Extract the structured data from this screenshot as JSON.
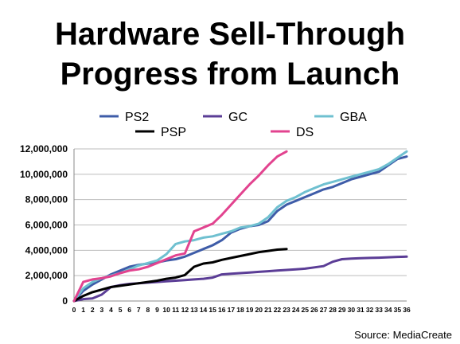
{
  "title_line1": "Hardware Sell-Through",
  "title_line2": "Progress from Launch",
  "source": "Source: MediaCreate",
  "chart_data": {
    "type": "line",
    "title": "Hardware Sell-Through Progress from Launch",
    "xlabel": "",
    "ylabel": "",
    "ylim": [
      0,
      12000000
    ],
    "xlim": [
      0,
      36
    ],
    "yticks": [
      "0",
      "2,000,000",
      "4,000,000",
      "6,000,000",
      "8,000,000",
      "10,000,000",
      "12,000,000"
    ],
    "ytick_values": [
      0,
      2000000,
      4000000,
      6000000,
      8000000,
      10000000,
      12000000
    ],
    "xticks": [
      "0",
      "1",
      "2",
      "3",
      "4",
      "5",
      "6",
      "7",
      "8",
      "9",
      "10",
      "11",
      "12",
      "13",
      "14",
      "15",
      "16",
      "17",
      "18",
      "19",
      "20",
      "21",
      "22",
      "23",
      "24",
      "25",
      "26",
      "27",
      "28",
      "29",
      "30",
      "31",
      "32",
      "33",
      "34",
      "35",
      "36"
    ],
    "grid": "horizontal",
    "legend_placement": "top",
    "series": [
      {
        "name": "PS2",
        "color": "#3e5ca8",
        "x": [
          0,
          1,
          2,
          3,
          4,
          5,
          6,
          7,
          8,
          9,
          10,
          11,
          12,
          13,
          14,
          15,
          16,
          17,
          18,
          19,
          20,
          21,
          22,
          23,
          24,
          25,
          26,
          27,
          28,
          29,
          30,
          31,
          32,
          33,
          34,
          35,
          36
        ],
        "values": [
          0,
          800000,
          1300000,
          1700000,
          2100000,
          2400000,
          2700000,
          2850000,
          2950000,
          3050000,
          3200000,
          3300000,
          3500000,
          3800000,
          4100000,
          4400000,
          4800000,
          5400000,
          5700000,
          5900000,
          6000000,
          6300000,
          7100000,
          7600000,
          7900000,
          8200000,
          8500000,
          8800000,
          9000000,
          9300000,
          9600000,
          9800000,
          10000000,
          10200000,
          10700000,
          11200000,
          11400000
        ]
      },
      {
        "name": "GC",
        "color": "#5b3d96",
        "x": [
          0,
          1,
          2,
          3,
          4,
          5,
          6,
          7,
          8,
          9,
          10,
          11,
          12,
          13,
          14,
          15,
          16,
          17,
          18,
          19,
          20,
          21,
          22,
          23,
          24,
          25,
          26,
          27,
          28,
          29,
          30,
          31,
          32,
          33,
          34,
          35,
          36
        ],
        "values": [
          0,
          150000,
          200000,
          500000,
          1100000,
          1250000,
          1350000,
          1400000,
          1450000,
          1500000,
          1550000,
          1600000,
          1650000,
          1700000,
          1750000,
          1850000,
          2100000,
          2150000,
          2200000,
          2250000,
          2300000,
          2350000,
          2400000,
          2450000,
          2500000,
          2550000,
          2650000,
          2750000,
          3100000,
          3300000,
          3350000,
          3380000,
          3400000,
          3420000,
          3450000,
          3480000,
          3500000
        ]
      },
      {
        "name": "GBA",
        "color": "#6fc0d0",
        "x": [
          0,
          1,
          2,
          3,
          4,
          5,
          6,
          7,
          8,
          9,
          10,
          11,
          12,
          13,
          14,
          15,
          16,
          17,
          18,
          19,
          20,
          21,
          22,
          23,
          24,
          25,
          26,
          27,
          28,
          29,
          30,
          31,
          32,
          33,
          34,
          35,
          36
        ],
        "values": [
          0,
          1000000,
          1500000,
          1800000,
          2000000,
          2200000,
          2500000,
          2800000,
          3000000,
          3200000,
          3700000,
          4500000,
          4700000,
          4800000,
          5000000,
          5100000,
          5300000,
          5500000,
          5800000,
          5900000,
          6100000,
          6600000,
          7400000,
          7900000,
          8200000,
          8600000,
          8900000,
          9200000,
          9400000,
          9600000,
          9800000,
          10000000,
          10200000,
          10400000,
          10800000,
          11300000,
          11800000
        ]
      },
      {
        "name": "PSP",
        "color": "#000000",
        "x": [
          0,
          1,
          2,
          3,
          4,
          5,
          6,
          7,
          8,
          9,
          10,
          11,
          12,
          13,
          14,
          15,
          16,
          17,
          18,
          19,
          20,
          21,
          22,
          23
        ],
        "values": [
          0,
          400000,
          700000,
          900000,
          1100000,
          1200000,
          1300000,
          1400000,
          1500000,
          1600000,
          1750000,
          1850000,
          2050000,
          2700000,
          2950000,
          3050000,
          3250000,
          3400000,
          3550000,
          3700000,
          3850000,
          3950000,
          4050000,
          4100000
        ]
      },
      {
        "name": "DS",
        "color": "#e2438f",
        "x": [
          0,
          1,
          2,
          3,
          4,
          5,
          6,
          7,
          8,
          9,
          10,
          11,
          12,
          13,
          14,
          15,
          16,
          17,
          18,
          19,
          20,
          21,
          22,
          23
        ],
        "values": [
          0,
          1500000,
          1700000,
          1800000,
          1950000,
          2200000,
          2400000,
          2500000,
          2700000,
          3000000,
          3300000,
          3600000,
          3750000,
          5500000,
          5800000,
          6100000,
          6800000,
          7600000,
          8400000,
          9200000,
          9900000,
          10700000,
          11400000,
          11800000
        ]
      }
    ]
  }
}
